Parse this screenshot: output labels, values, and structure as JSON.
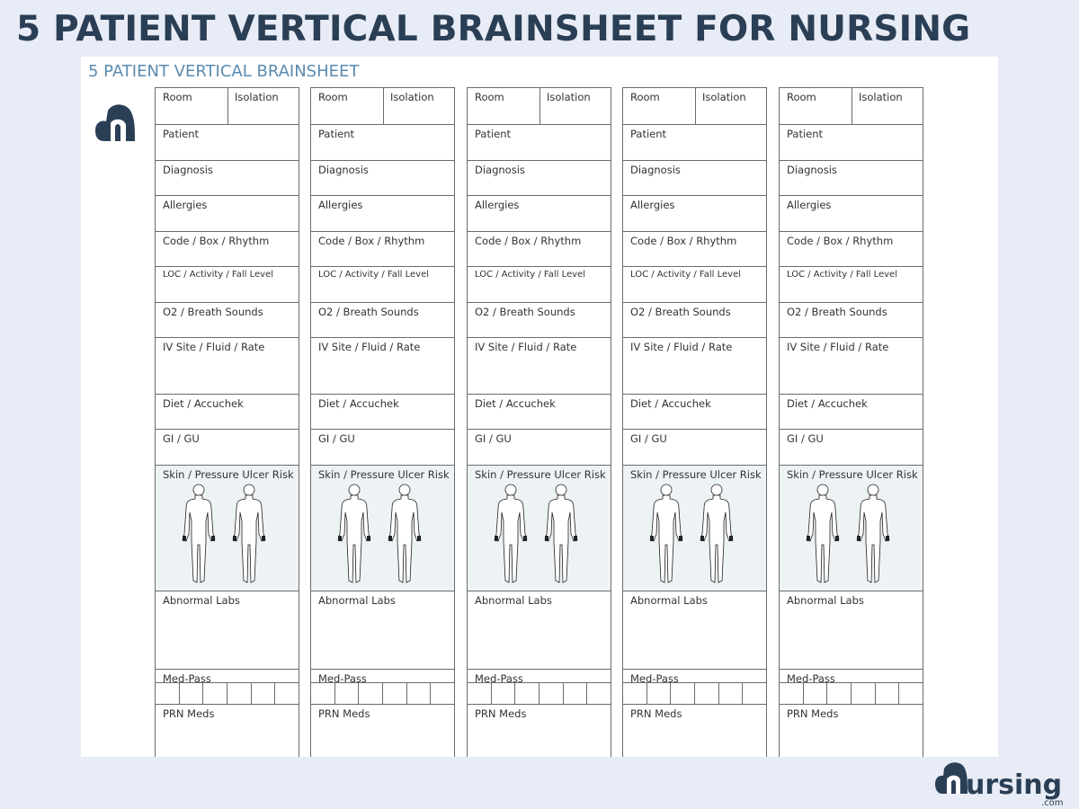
{
  "title": "5 PATIENT VERTICAL BRAINSHEET FOR NURSING",
  "subtitle": "5 PATIENT VERTICAL BRAINSHEET",
  "brand": {
    "name": "nursing",
    "suffix": ".com",
    "color": "#2a3f55"
  },
  "accent": "#5b8bb0",
  "patient_count": 5,
  "fields": {
    "room": "Room",
    "isolation": "Isolation",
    "patient": "Patient",
    "diagnosis": "Diagnosis",
    "allergies": "Allergies",
    "code": "Code / Box / Rhythm",
    "loc": "LOC / Activity / Fall Level",
    "o2": "O2 / Breath Sounds",
    "iv": "IV Site / Fluid / Rate",
    "diet": "Diet / Accuchek",
    "gi": "GI / GU",
    "skin": "Skin / Pressure Ulcer Risk",
    "labs": "Abnormal Labs",
    "medpass": "Med-Pass",
    "prn": "PRN Meds"
  }
}
